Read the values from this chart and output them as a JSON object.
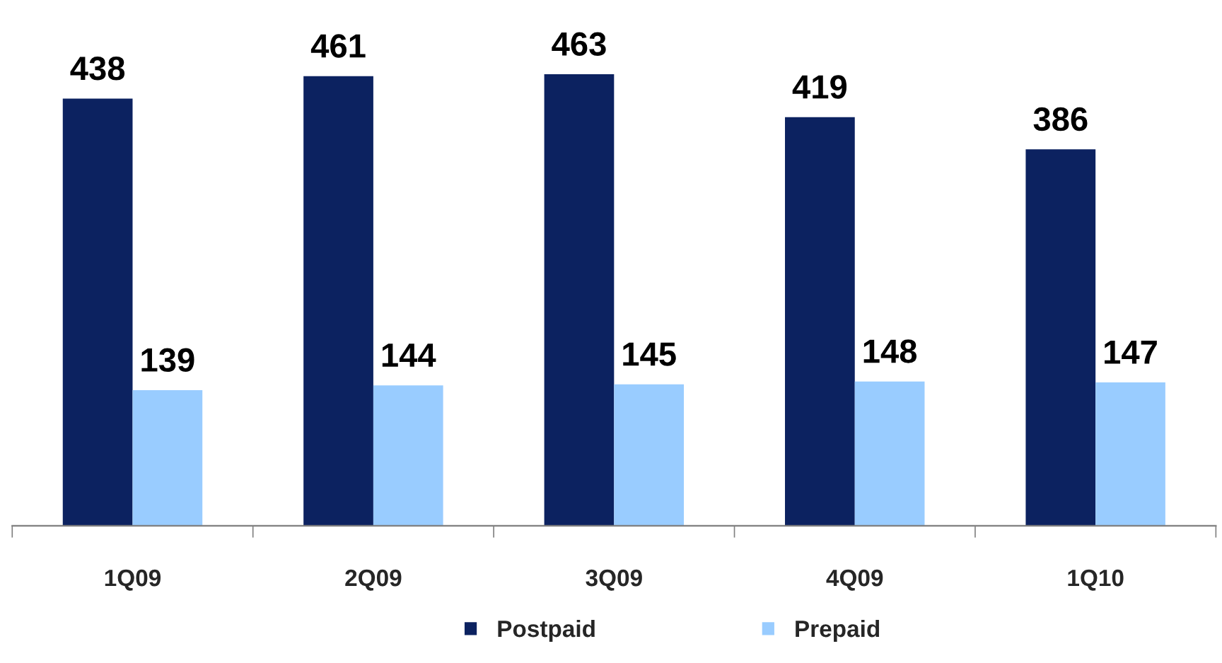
{
  "chart_data": {
    "type": "bar",
    "categories": [
      "1Q09",
      "2Q09",
      "3Q09",
      "4Q09",
      "1Q10"
    ],
    "series": [
      {
        "name": "Postpaid",
        "color": "#0c2260",
        "values": [
          438,
          461,
          463,
          419,
          386
        ]
      },
      {
        "name": "Prepaid",
        "color": "#99ccff",
        "values": [
          139,
          144,
          145,
          148,
          147
        ]
      }
    ],
    "data_labels": true,
    "legend": "bottom",
    "grid": false
  }
}
